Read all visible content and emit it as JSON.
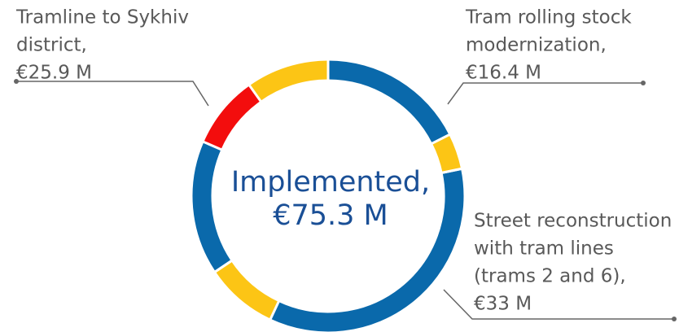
{
  "chart_data": {
    "type": "donut",
    "center_label": "Implemented,",
    "center_value": 75.3,
    "center_value_label": "€75.3 M",
    "groups": [
      {
        "name": [
          "Tram rolling stock",
          "modernization,"
        ],
        "value": 16.4,
        "value_label": "€16.4 M",
        "segments": [
          {
            "color": "#0a69ab",
            "value": 13.2
          },
          {
            "color": "#fcc515",
            "value": 3.2
          }
        ]
      },
      {
        "name": [
          "Street reconstruction",
          "with tram lines",
          "(trams 2 and 6),"
        ],
        "value": 33,
        "value_label": "€33 M",
        "segments": [
          {
            "color": "#0a69ab",
            "value": 26.5
          },
          {
            "color": "#fcc515",
            "value": 6.5
          }
        ]
      },
      {
        "name": [
          "Tramline to Sykhiv",
          "district,"
        ],
        "value": 25.9,
        "value_label": "€25.9 M",
        "segments": [
          {
            "color": "#0a69ab",
            "value": 12
          },
          {
            "color": "#f30d0d",
            "value": 6.5
          },
          {
            "color": "#fcc515",
            "value": 7.4
          }
        ]
      }
    ]
  }
}
